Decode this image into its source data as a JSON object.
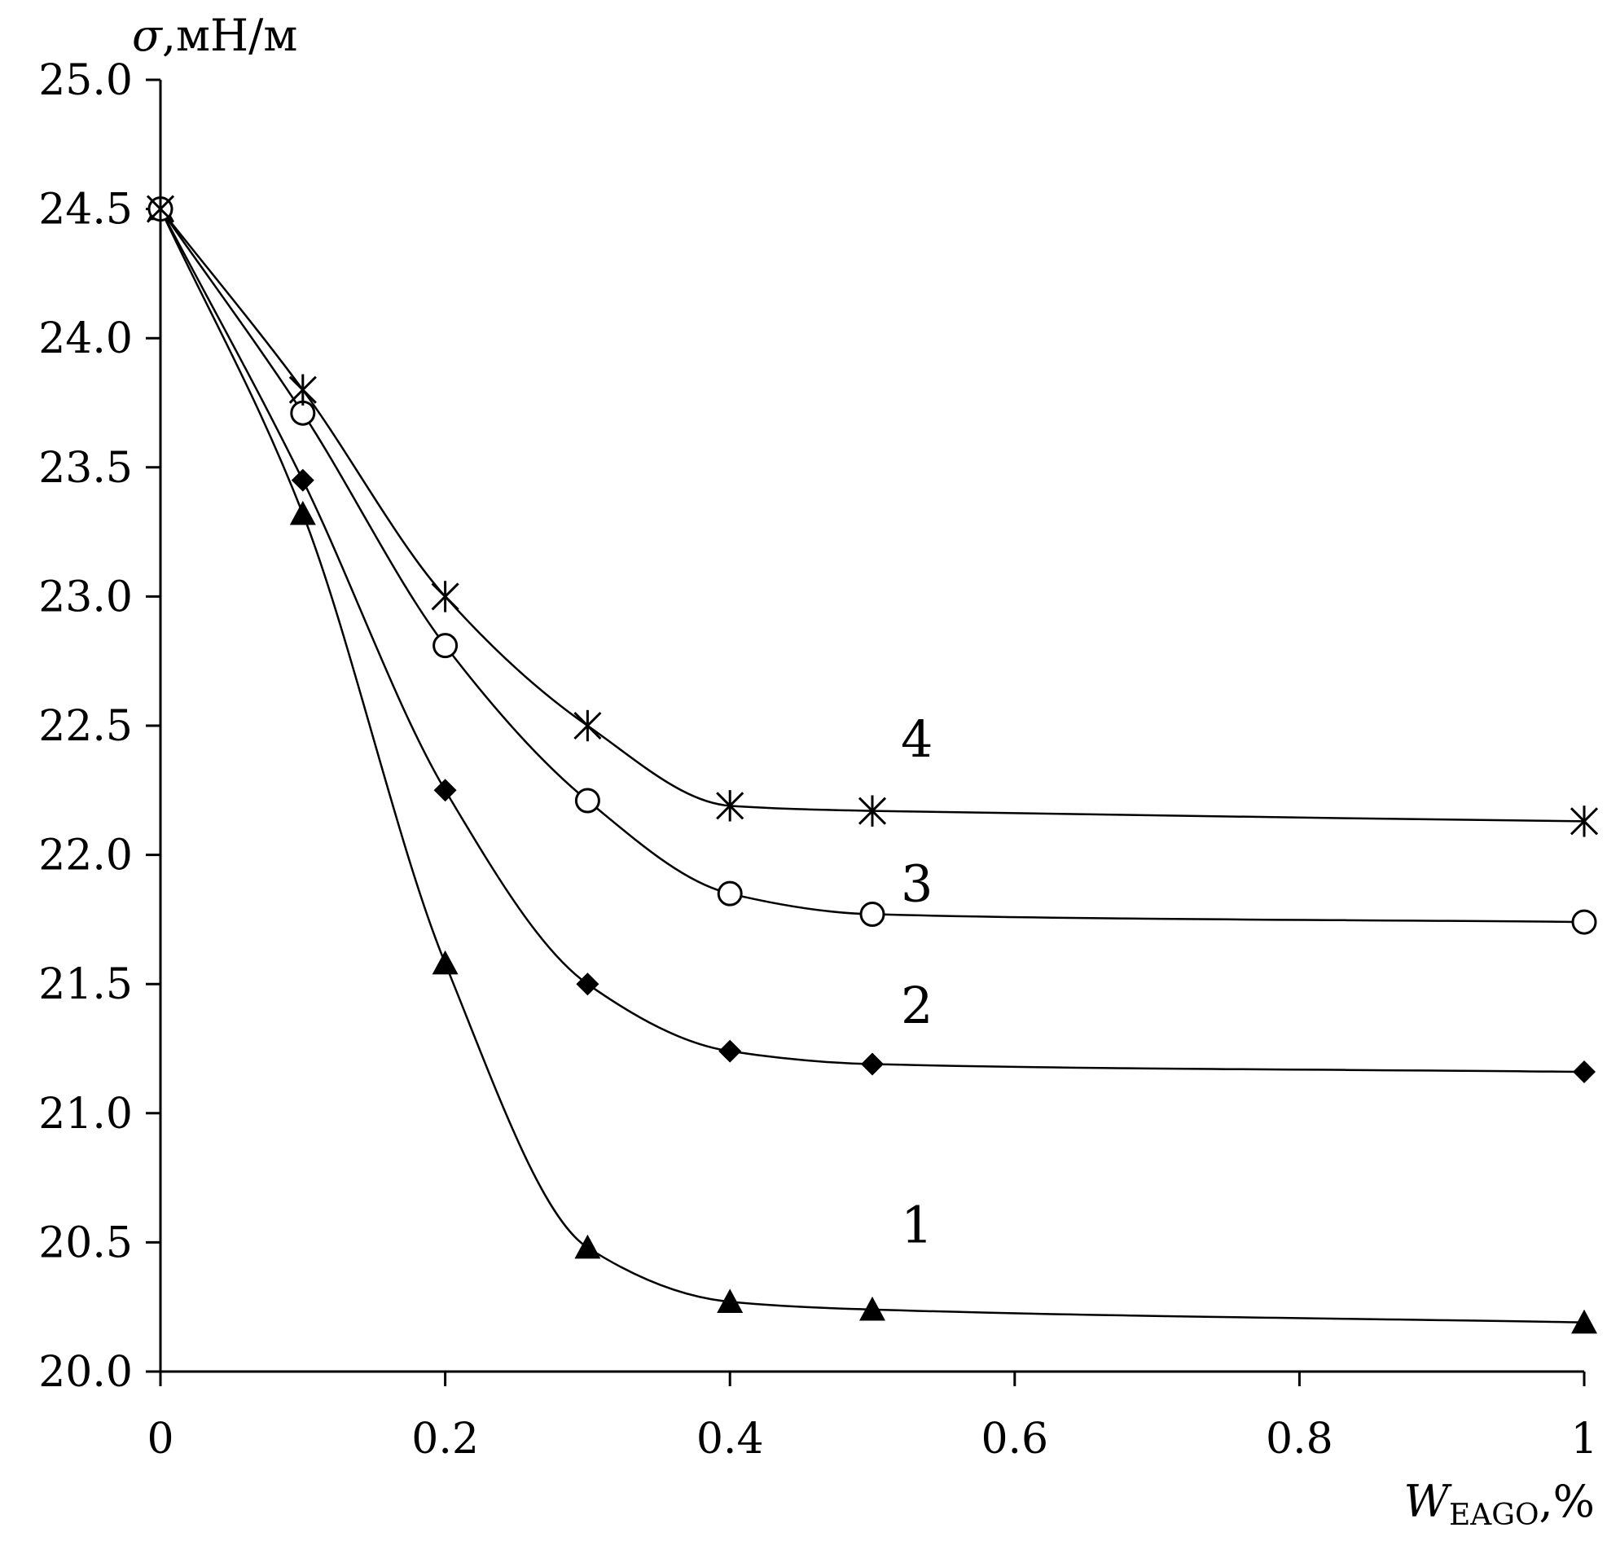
{
  "chart_data": {
    "type": "line",
    "title": "",
    "ylabel_symbol": "σ",
    "ylabel_units": ",мН/м",
    "xlabel_symbol": "W",
    "xlabel_subscript": "EAGO",
    "xlabel_units": ",%",
    "xlim": [
      0,
      1
    ],
    "ylim": [
      20.0,
      25.0
    ],
    "x_ticks": [
      0,
      0.2,
      0.4,
      0.6,
      0.8,
      1
    ],
    "x_tick_labels": [
      "0",
      "0.2",
      "0.4",
      "0.6",
      "0.8",
      "1"
    ],
    "y_ticks": [
      20.0,
      20.5,
      21.0,
      21.5,
      22.0,
      22.5,
      23.0,
      23.5,
      24.0,
      24.5,
      25.0
    ],
    "y_tick_labels": [
      "20.0",
      "20.5",
      "21.0",
      "21.5",
      "22.0",
      "22.5",
      "23.0",
      "23.5",
      "24.0",
      "24.5",
      "25.0"
    ],
    "grid": false,
    "series": [
      {
        "name": "1",
        "marker": "triangle",
        "x": [
          0,
          0.1,
          0.2,
          0.3,
          0.4,
          0.5,
          1
        ],
        "values": [
          24.5,
          23.32,
          21.58,
          20.48,
          20.27,
          20.24,
          20.19
        ]
      },
      {
        "name": "2",
        "marker": "diamond",
        "x": [
          0,
          0.1,
          0.2,
          0.3,
          0.4,
          0.5,
          1
        ],
        "values": [
          24.5,
          23.45,
          22.25,
          21.5,
          21.24,
          21.19,
          21.16
        ]
      },
      {
        "name": "3",
        "marker": "circle-open",
        "x": [
          0,
          0.1,
          0.2,
          0.3,
          0.4,
          0.5,
          1
        ],
        "values": [
          24.5,
          23.71,
          22.81,
          22.21,
          21.85,
          21.77,
          21.74
        ]
      },
      {
        "name": "4",
        "marker": "star",
        "x": [
          0,
          0.1,
          0.2,
          0.3,
          0.4,
          0.5,
          1
        ],
        "values": [
          24.5,
          23.8,
          23.0,
          22.5,
          22.19,
          22.17,
          22.13
        ]
      }
    ],
    "curve_labels": [
      {
        "text": "1",
        "x": 0.52,
        "y": 20.5
      },
      {
        "text": "2",
        "x": 0.52,
        "y": 21.35
      },
      {
        "text": "3",
        "x": 0.52,
        "y": 21.82
      },
      {
        "text": "4",
        "x": 0.52,
        "y": 22.38
      }
    ]
  }
}
